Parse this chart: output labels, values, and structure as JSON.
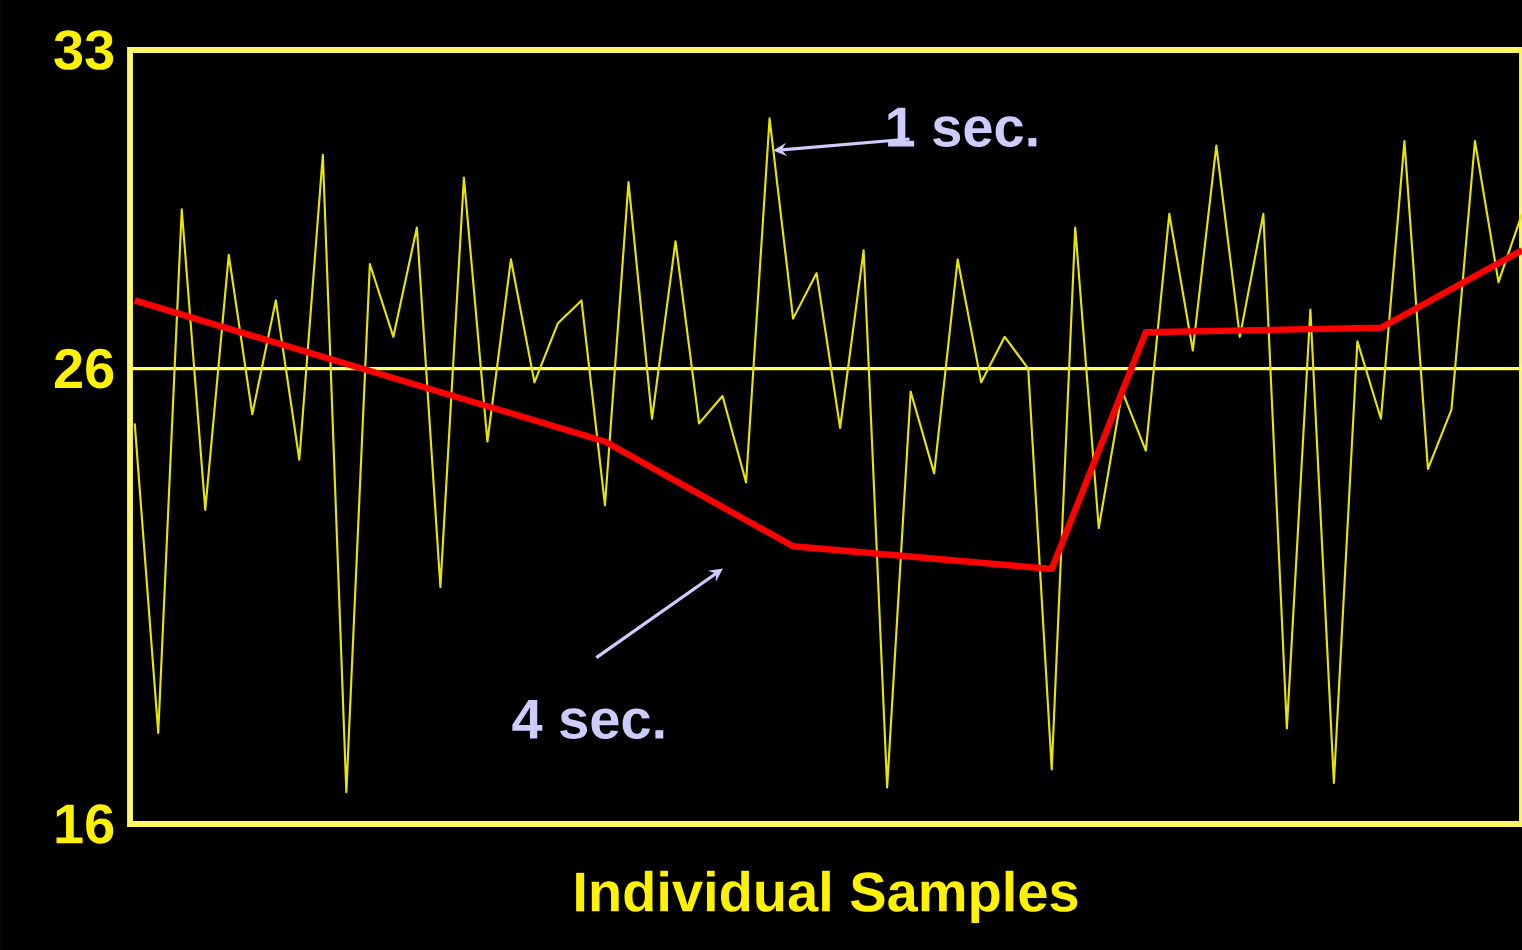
{
  "chart_data": {
    "type": "line",
    "xlabel": "Individual Samples",
    "categories": [
      null,
      null,
      null,
      null,
      null,
      null,
      null,
      null,
      null,
      null,
      null,
      null,
      null,
      null,
      null,
      null,
      null,
      null,
      null,
      null,
      null,
      null,
      null,
      null,
      null,
      null,
      null,
      null,
      null,
      null,
      null,
      null,
      null,
      null,
      null,
      null,
      null,
      null,
      null,
      null,
      null,
      null,
      null,
      null,
      null,
      null,
      null,
      null,
      null,
      null,
      null,
      null,
      null,
      null,
      null,
      null,
      null,
      null,
      null,
      null
    ],
    "ylim": [
      16,
      33
    ],
    "yticks": [
      16,
      26,
      33
    ],
    "marker": "none",
    "line_style": "solid",
    "annotations": [
      "1 sec.",
      "4 sec."
    ],
    "ref_lines": [
      {
        "axis": "y",
        "value": 26,
        "color": "#ffff66"
      }
    ],
    "series": [
      {
        "color": "#e6e600",
        "values": [
          24.8,
          18.0,
          29.5,
          22.9,
          28.5,
          25.0,
          27.5,
          24.0,
          30.7,
          16.7,
          28.3,
          26.7,
          29.1,
          21.2,
          30.2,
          24.4,
          28.4,
          25.7,
          27.0,
          27.5,
          23.0,
          30.1,
          24.9,
          28.8,
          24.8,
          25.4,
          23.5,
          31.5,
          27.1,
          28.1,
          24.7,
          28.6,
          16.8,
          25.5,
          23.7,
          28.4,
          25.7,
          26.7,
          26.0,
          17.2,
          29.1,
          22.5,
          25.5,
          24.2,
          29.4,
          26.4,
          30.9,
          26.7,
          29.4,
          18.1,
          27.3,
          16.9,
          26.6,
          24.9,
          31.0,
          23.8,
          25.1,
          31.0,
          27.9,
          29.4
        ]
      },
      {
        "color": "#ff0000",
        "values": [
          27.5,
          null,
          null,
          null,
          null,
          null,
          null,
          null,
          null,
          null,
          null,
          null,
          null,
          null,
          null,
          null,
          null,
          null,
          null,
          null,
          24.4,
          null,
          null,
          null,
          null,
          null,
          null,
          null,
          22.1,
          null,
          null,
          null,
          null,
          null,
          null,
          null,
          null,
          null,
          null,
          21.6,
          null,
          null,
          null,
          26.8,
          null,
          null,
          null,
          null,
          null,
          null,
          null,
          null,
          null,
          26.9,
          null,
          null,
          null,
          null,
          null,
          28.6
        ]
      }
    ]
  }
}
